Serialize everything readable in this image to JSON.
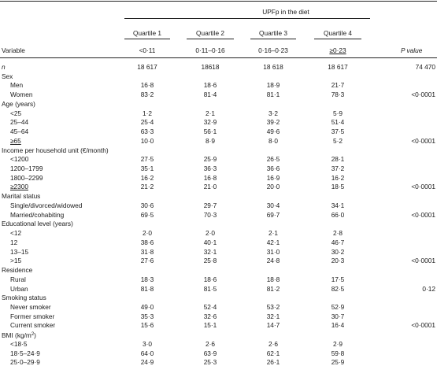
{
  "header": {
    "spanner": "UPFp in the diet",
    "variable": "Variable",
    "p_value": "P value",
    "quartiles": [
      {
        "label": "Quartile 1",
        "range": "<0·11"
      },
      {
        "label": "Quartile 2",
        "range": "0·11–0·16"
      },
      {
        "label": "Quartile 3",
        "range": "0·16–0·23"
      },
      {
        "label": "Quartile 4",
        "range": "≥0·23"
      }
    ]
  },
  "rows": [
    {
      "label": "n",
      "type": "n",
      "values": [
        "18 617",
        "18618",
        "18 618",
        "18 617"
      ],
      "p": "74 470"
    },
    {
      "label": "Sex",
      "type": "section"
    },
    {
      "label": "Men",
      "type": "item",
      "values": [
        "16·8",
        "18·6",
        "18·9",
        "21·7"
      ],
      "p": ""
    },
    {
      "label": "Women",
      "type": "item",
      "values": [
        "83·2",
        "81·4",
        "81·1",
        "78·3"
      ],
      "p": "<0·0001"
    },
    {
      "label": "Age (years)",
      "type": "section"
    },
    {
      "label": "<25",
      "type": "item",
      "values": [
        "1·2",
        "2·1",
        "3·2",
        "5·9"
      ],
      "p": ""
    },
    {
      "label": "25–44",
      "type": "item",
      "values": [
        "25·4",
        "32·9",
        "39·2",
        "51·4"
      ],
      "p": ""
    },
    {
      "label": "45–64",
      "type": "item",
      "values": [
        "63·3",
        "56·1",
        "49·6",
        "37·5"
      ],
      "p": ""
    },
    {
      "label": "≥65",
      "type": "item",
      "values": [
        "10·0",
        "8·9",
        "8·0",
        "5·2"
      ],
      "p": "<0·0001"
    },
    {
      "label": "Income per household unit (€/month)",
      "type": "section"
    },
    {
      "label": "<1200",
      "type": "item",
      "values": [
        "27·5",
        "25·9",
        "26·5",
        "28·1"
      ],
      "p": ""
    },
    {
      "label": "1200–1799",
      "type": "item",
      "values": [
        "35·1",
        "36·3",
        "36·6",
        "37·2"
      ],
      "p": ""
    },
    {
      "label": "1800–2299",
      "type": "item",
      "values": [
        "16·2",
        "16·8",
        "16·9",
        "16·2"
      ],
      "p": ""
    },
    {
      "label": "≥2300",
      "type": "item",
      "values": [
        "21·2",
        "21·0",
        "20·0",
        "18·5"
      ],
      "p": "<0·0001"
    },
    {
      "label": "Marital status",
      "type": "section"
    },
    {
      "label": "Single/divorced/widowed",
      "type": "item",
      "values": [
        "30·6",
        "29·7",
        "30·4",
        "34·1"
      ],
      "p": ""
    },
    {
      "label": "Married/cohabiting",
      "type": "item",
      "values": [
        "69·5",
        "70·3",
        "69·7",
        "66·0"
      ],
      "p": "<0·0001"
    },
    {
      "label": "Educational level (years)",
      "type": "section"
    },
    {
      "label": "<12",
      "type": "item",
      "values": [
        "2·0",
        "2·0",
        "2·1",
        "2·8"
      ],
      "p": ""
    },
    {
      "label": "12",
      "type": "item",
      "values": [
        "38·6",
        "40·1",
        "42·1",
        "46·7"
      ],
      "p": ""
    },
    {
      "label": "13–15",
      "type": "item",
      "values": [
        "31·8",
        "32·1",
        "31·0",
        "30·2"
      ],
      "p": ""
    },
    {
      "label": ">15",
      "type": "item",
      "values": [
        "27·6",
        "25·8",
        "24·8",
        "20·3"
      ],
      "p": "<0·0001"
    },
    {
      "label": "Residence",
      "type": "section"
    },
    {
      "label": "Rural",
      "type": "item",
      "values": [
        "18·3",
        "18·6",
        "18·8",
        "17·5"
      ],
      "p": ""
    },
    {
      "label": "Urban",
      "type": "item",
      "values": [
        "81·8",
        "81·5",
        "81·2",
        "82·5"
      ],
      "p": "0·12"
    },
    {
      "label": "Smoking status",
      "type": "section"
    },
    {
      "label": "Never smoker",
      "type": "item",
      "values": [
        "49·0",
        "52·4",
        "53·2",
        "52·9"
      ],
      "p": ""
    },
    {
      "label": "Former smoker",
      "type": "item",
      "values": [
        "35·3",
        "32·6",
        "32·1",
        "30·7"
      ],
      "p": ""
    },
    {
      "label": "Current smoker",
      "type": "item",
      "values": [
        "15·6",
        "15·1",
        "14·7",
        "16·4"
      ],
      "p": "<0·0001"
    },
    {
      "label": "BMI (kg/m",
      "label_sup": "2",
      "label_end": ")",
      "type": "section"
    },
    {
      "label": "<18·5",
      "type": "item",
      "values": [
        "3·0",
        "2·6",
        "2·6",
        "2·9"
      ],
      "p": ""
    },
    {
      "label": "18·5–24·9",
      "type": "item",
      "values": [
        "64·0",
        "63·9",
        "62·1",
        "59·8"
      ],
      "p": ""
    },
    {
      "label": "25·0–29·9",
      "type": "item",
      "values": [
        "24·9",
        "25·3",
        "26·1",
        "25·9"
      ],
      "p": ""
    }
  ]
}
